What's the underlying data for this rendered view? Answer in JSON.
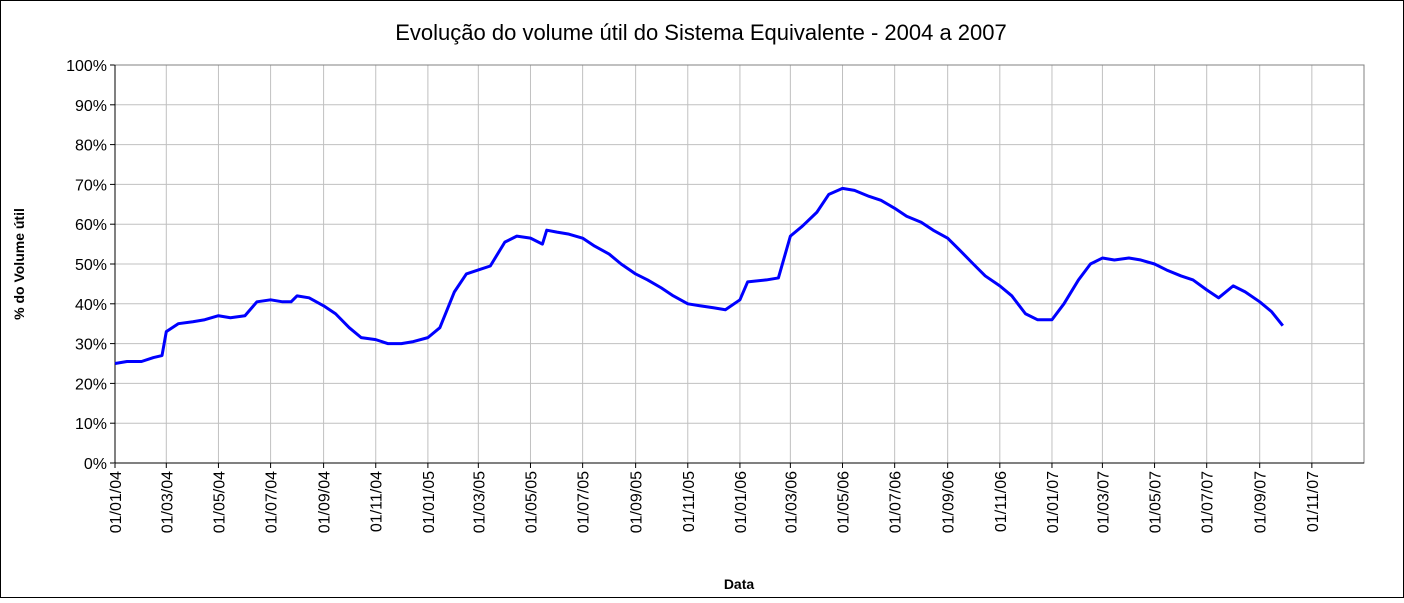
{
  "chart_data": {
    "type": "line",
    "title": "Evolução do volume útil do Sistema Equivalente - 2004 a 2007",
    "x_label": "Data",
    "y_label": "% do Volume útil",
    "x": [
      "2004-01-01",
      "2004-01-15",
      "2004-02-01",
      "2004-02-15",
      "2004-02-25",
      "2004-03-01",
      "2004-03-15",
      "2004-04-01",
      "2004-04-15",
      "2004-05-01",
      "2004-05-15",
      "2004-06-01",
      "2004-06-15",
      "2004-07-01",
      "2004-07-15",
      "2004-07-25",
      "2004-08-01",
      "2004-08-15",
      "2004-09-01",
      "2004-09-15",
      "2004-10-01",
      "2004-10-15",
      "2004-11-01",
      "2004-11-15",
      "2004-12-01",
      "2004-12-15",
      "2005-01-01",
      "2005-01-15",
      "2005-02-01",
      "2005-02-15",
      "2005-03-01",
      "2005-03-15",
      "2005-04-01",
      "2005-04-15",
      "2005-05-01",
      "2005-05-15",
      "2005-05-20",
      "2005-06-01",
      "2005-06-15",
      "2005-07-01",
      "2005-07-15",
      "2005-08-01",
      "2005-08-15",
      "2005-09-01",
      "2005-09-15",
      "2005-10-01",
      "2005-10-15",
      "2005-11-01",
      "2005-11-15",
      "2005-12-01",
      "2005-12-15",
      "2006-01-01",
      "2006-01-10",
      "2006-02-01",
      "2006-02-15",
      "2006-03-01",
      "2006-03-15",
      "2006-04-01",
      "2006-04-15",
      "2006-05-01",
      "2006-05-15",
      "2006-06-01",
      "2006-06-15",
      "2006-07-01",
      "2006-07-15",
      "2006-08-01",
      "2006-08-15",
      "2006-09-01",
      "2006-09-15",
      "2006-10-01",
      "2006-10-15",
      "2006-11-01",
      "2006-11-15",
      "2006-12-01",
      "2006-12-15",
      "2007-01-01",
      "2007-01-15",
      "2007-02-01",
      "2007-02-15",
      "2007-03-01",
      "2007-03-15",
      "2007-04-01",
      "2007-04-15",
      "2007-05-01",
      "2007-05-15",
      "2007-06-01",
      "2007-06-15",
      "2007-07-01",
      "2007-07-15",
      "2007-08-01",
      "2007-08-15",
      "2007-09-01",
      "2007-09-15",
      "2007-09-28"
    ],
    "series": [
      {
        "name": "% do Volume útil",
        "color": "#0000ff",
        "values": [
          25,
          25.5,
          25.5,
          26.5,
          27,
          33,
          35,
          35.5,
          36,
          37,
          36.5,
          37,
          40.5,
          41,
          40.5,
          40.5,
          42,
          41.5,
          39.5,
          37.5,
          34,
          31.5,
          31,
          30,
          30,
          30.5,
          31.5,
          34,
          43,
          47.5,
          48.5,
          49.5,
          55.5,
          57,
          56.5,
          55,
          58.5,
          58,
          57.5,
          56.5,
          54.5,
          52.5,
          50,
          47.5,
          46,
          44,
          42,
          40,
          39.5,
          39,
          38.5,
          41,
          45.5,
          46,
          46.5,
          57,
          59.5,
          63,
          67.5,
          69,
          68.5,
          67,
          66,
          64,
          62,
          60.5,
          58.5,
          56.5,
          53.5,
          50,
          47,
          44.5,
          42,
          37.5,
          36,
          36,
          40,
          46,
          50,
          51.5,
          51,
          51.5,
          51,
          50,
          48.5,
          47,
          46,
          43.5,
          41.5,
          44.5,
          43,
          40.5,
          38,
          34.5
        ]
      }
    ],
    "xlim": [
      "2004-01-01",
      "2008-01-01"
    ],
    "xticks": [
      {
        "value": "2004-01-01",
        "label": "01/01/04"
      },
      {
        "value": "2004-03-01",
        "label": "01/03/04"
      },
      {
        "value": "2004-05-01",
        "label": "01/05/04"
      },
      {
        "value": "2004-07-01",
        "label": "01/07/04"
      },
      {
        "value": "2004-09-01",
        "label": "01/09/04"
      },
      {
        "value": "2004-11-01",
        "label": "01/11/04"
      },
      {
        "value": "2005-01-01",
        "label": "01/01/05"
      },
      {
        "value": "2005-03-01",
        "label": "01/03/05"
      },
      {
        "value": "2005-05-01",
        "label": "01/05/05"
      },
      {
        "value": "2005-07-01",
        "label": "01/07/05"
      },
      {
        "value": "2005-09-01",
        "label": "01/09/05"
      },
      {
        "value": "2005-11-01",
        "label": "01/11/05"
      },
      {
        "value": "2006-01-01",
        "label": "01/01/06"
      },
      {
        "value": "2006-03-01",
        "label": "01/03/06"
      },
      {
        "value": "2006-05-01",
        "label": "01/05/06"
      },
      {
        "value": "2006-07-01",
        "label": "01/07/06"
      },
      {
        "value": "2006-09-01",
        "label": "01/09/06"
      },
      {
        "value": "2006-11-01",
        "label": "01/11/06"
      },
      {
        "value": "2007-01-01",
        "label": "01/01/07"
      },
      {
        "value": "2007-03-01",
        "label": "01/03/07"
      },
      {
        "value": "2007-05-01",
        "label": "01/05/07"
      },
      {
        "value": "2007-07-01",
        "label": "01/07/07"
      },
      {
        "value": "2007-09-01",
        "label": "01/09/07"
      },
      {
        "value": "2007-11-01",
        "label": "01/11/07"
      }
    ],
    "ylim": [
      0,
      100
    ],
    "yticks": [
      {
        "value": 0,
        "label": "0%"
      },
      {
        "value": 10,
        "label": "10%"
      },
      {
        "value": 20,
        "label": "20%"
      },
      {
        "value": 30,
        "label": "30%"
      },
      {
        "value": 40,
        "label": "40%"
      },
      {
        "value": 50,
        "label": "50%"
      },
      {
        "value": 60,
        "label": "60%"
      },
      {
        "value": 70,
        "label": "70%"
      },
      {
        "value": 80,
        "label": "80%"
      },
      {
        "value": 90,
        "label": "90%"
      },
      {
        "value": 100,
        "label": "100%"
      }
    ],
    "grid": true
  }
}
